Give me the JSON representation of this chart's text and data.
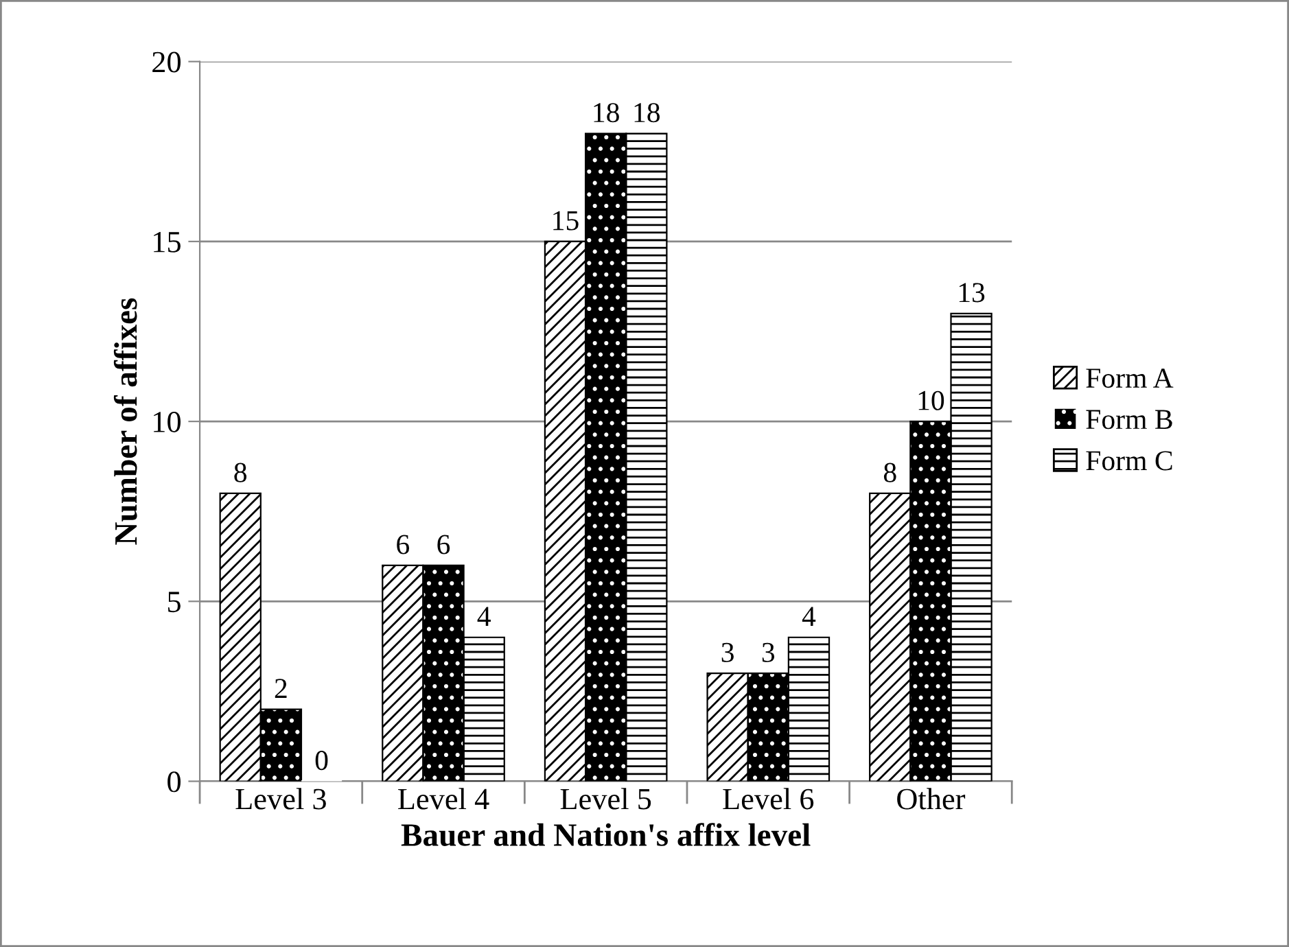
{
  "chart_data": {
    "type": "bar",
    "xlabel": "Bauer and Nation's affix level",
    "ylabel": "Number of affixes",
    "categories": [
      "Level 3",
      "Level 4",
      "Level 5",
      "Level 6",
      "Other"
    ],
    "series": [
      {
        "name": "Form A",
        "color": "#ffffff",
        "values": [
          8,
          6,
          15,
          3,
          8
        ]
      },
      {
        "name": "Form B",
        "color": "#000000",
        "values": [
          2,
          6,
          18,
          3,
          10
        ]
      },
      {
        "name": "Form C",
        "color": "#ffffff",
        "values": [
          0,
          4,
          18,
          4,
          13
        ]
      }
    ],
    "ylim": [
      0,
      20
    ],
    "yticks": [
      0,
      5,
      10,
      15,
      20
    ],
    "grid": "y",
    "legend": "right",
    "data_labels": true
  }
}
